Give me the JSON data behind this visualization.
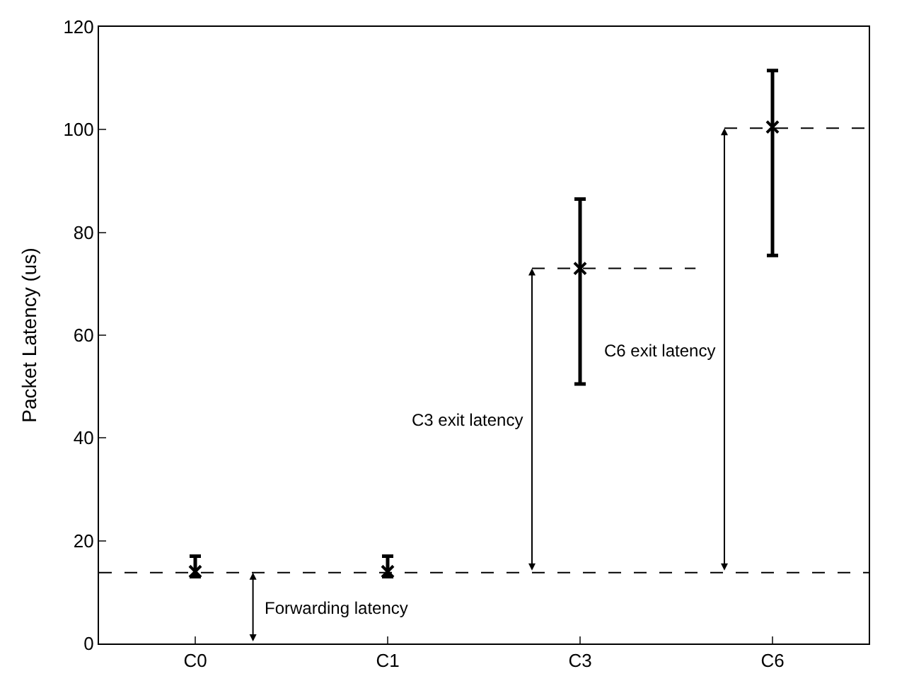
{
  "chart_data": {
    "type": "scatter",
    "ylabel": "Packet Latency (us)",
    "categories": [
      "C0",
      "C1",
      "C3",
      "C6"
    ],
    "values": [
      14,
      14,
      73,
      100.5
    ],
    "errors": [
      [
        13,
        17
      ],
      [
        13,
        17
      ],
      [
        50.5,
        86.5
      ],
      [
        75.5,
        111.5
      ]
    ],
    "color": "#000000",
    "marker": "cross",
    "ylim": [
      0,
      120
    ],
    "yticks": [
      0,
      20,
      40,
      60,
      80,
      100,
      120
    ],
    "ref_lines": [
      {
        "axis": "y",
        "value": 13.8,
        "line_style": "dashed",
        "color": "#000000"
      },
      {
        "axis": "y",
        "value": 73,
        "line_style": "dashed",
        "color": "#000000"
      },
      {
        "axis": "y",
        "value": 100.3,
        "line_style": "dashed",
        "color": "#000000"
      }
    ],
    "annotations": [
      "Forwarding latency",
      "C3 exit latency",
      "C6 exit latency"
    ]
  }
}
